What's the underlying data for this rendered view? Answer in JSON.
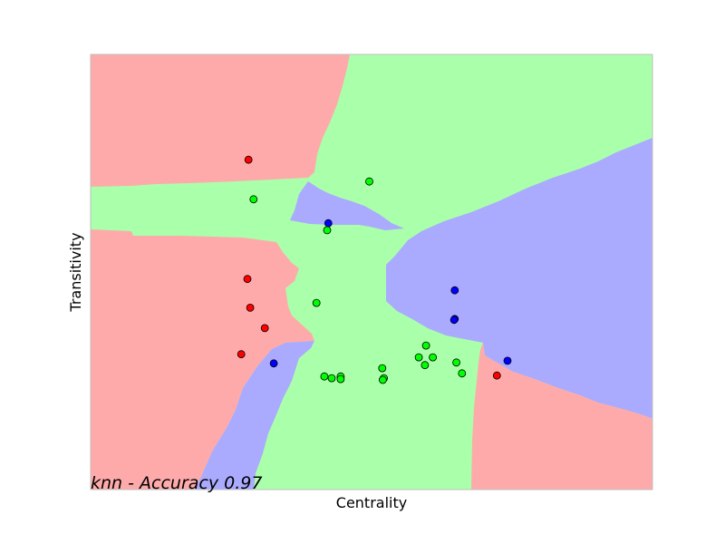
{
  "chart_data": {
    "type": "scatter",
    "title": "knn - Accuracy 0.97",
    "xlabel": "Centrality",
    "ylabel": "Transitivity",
    "xlim": [
      0,
      1
    ],
    "ylim": [
      0,
      1
    ],
    "grid": false,
    "ticks": "none",
    "background_regions": {
      "description": "kNN decision regions",
      "colors": {
        "red": "#ffaaaa",
        "green": "#aaffaa",
        "blue": "#aaaaff"
      }
    },
    "series": [
      {
        "color": "#ff0000",
        "points": [
          [
            0.281,
            0.758
          ],
          [
            0.279,
            0.484
          ],
          [
            0.284,
            0.418
          ],
          [
            0.31,
            0.371
          ],
          [
            0.268,
            0.311
          ],
          [
            0.723,
            0.262
          ]
        ]
      },
      {
        "color": "#00ff00",
        "points": [
          [
            0.29,
            0.667
          ],
          [
            0.496,
            0.708
          ],
          [
            0.421,
            0.596
          ],
          [
            0.402,
            0.429
          ],
          [
            0.597,
            0.331
          ],
          [
            0.584,
            0.304
          ],
          [
            0.595,
            0.286
          ],
          [
            0.609,
            0.304
          ],
          [
            0.651,
            0.292
          ],
          [
            0.661,
            0.267
          ],
          [
            0.519,
            0.279
          ],
          [
            0.522,
            0.256
          ],
          [
            0.416,
            0.26
          ],
          [
            0.429,
            0.256
          ],
          [
            0.445,
            0.26
          ],
          [
            0.445,
            0.254
          ],
          [
            0.52,
            0.252
          ]
        ]
      },
      {
        "color": "#0000ff",
        "points": [
          [
            0.423,
            0.612
          ],
          [
            0.648,
            0.458
          ],
          [
            0.648,
            0.392
          ],
          [
            0.647,
            0.39
          ],
          [
            0.742,
            0.296
          ],
          [
            0.326,
            0.29
          ]
        ]
      }
    ]
  }
}
